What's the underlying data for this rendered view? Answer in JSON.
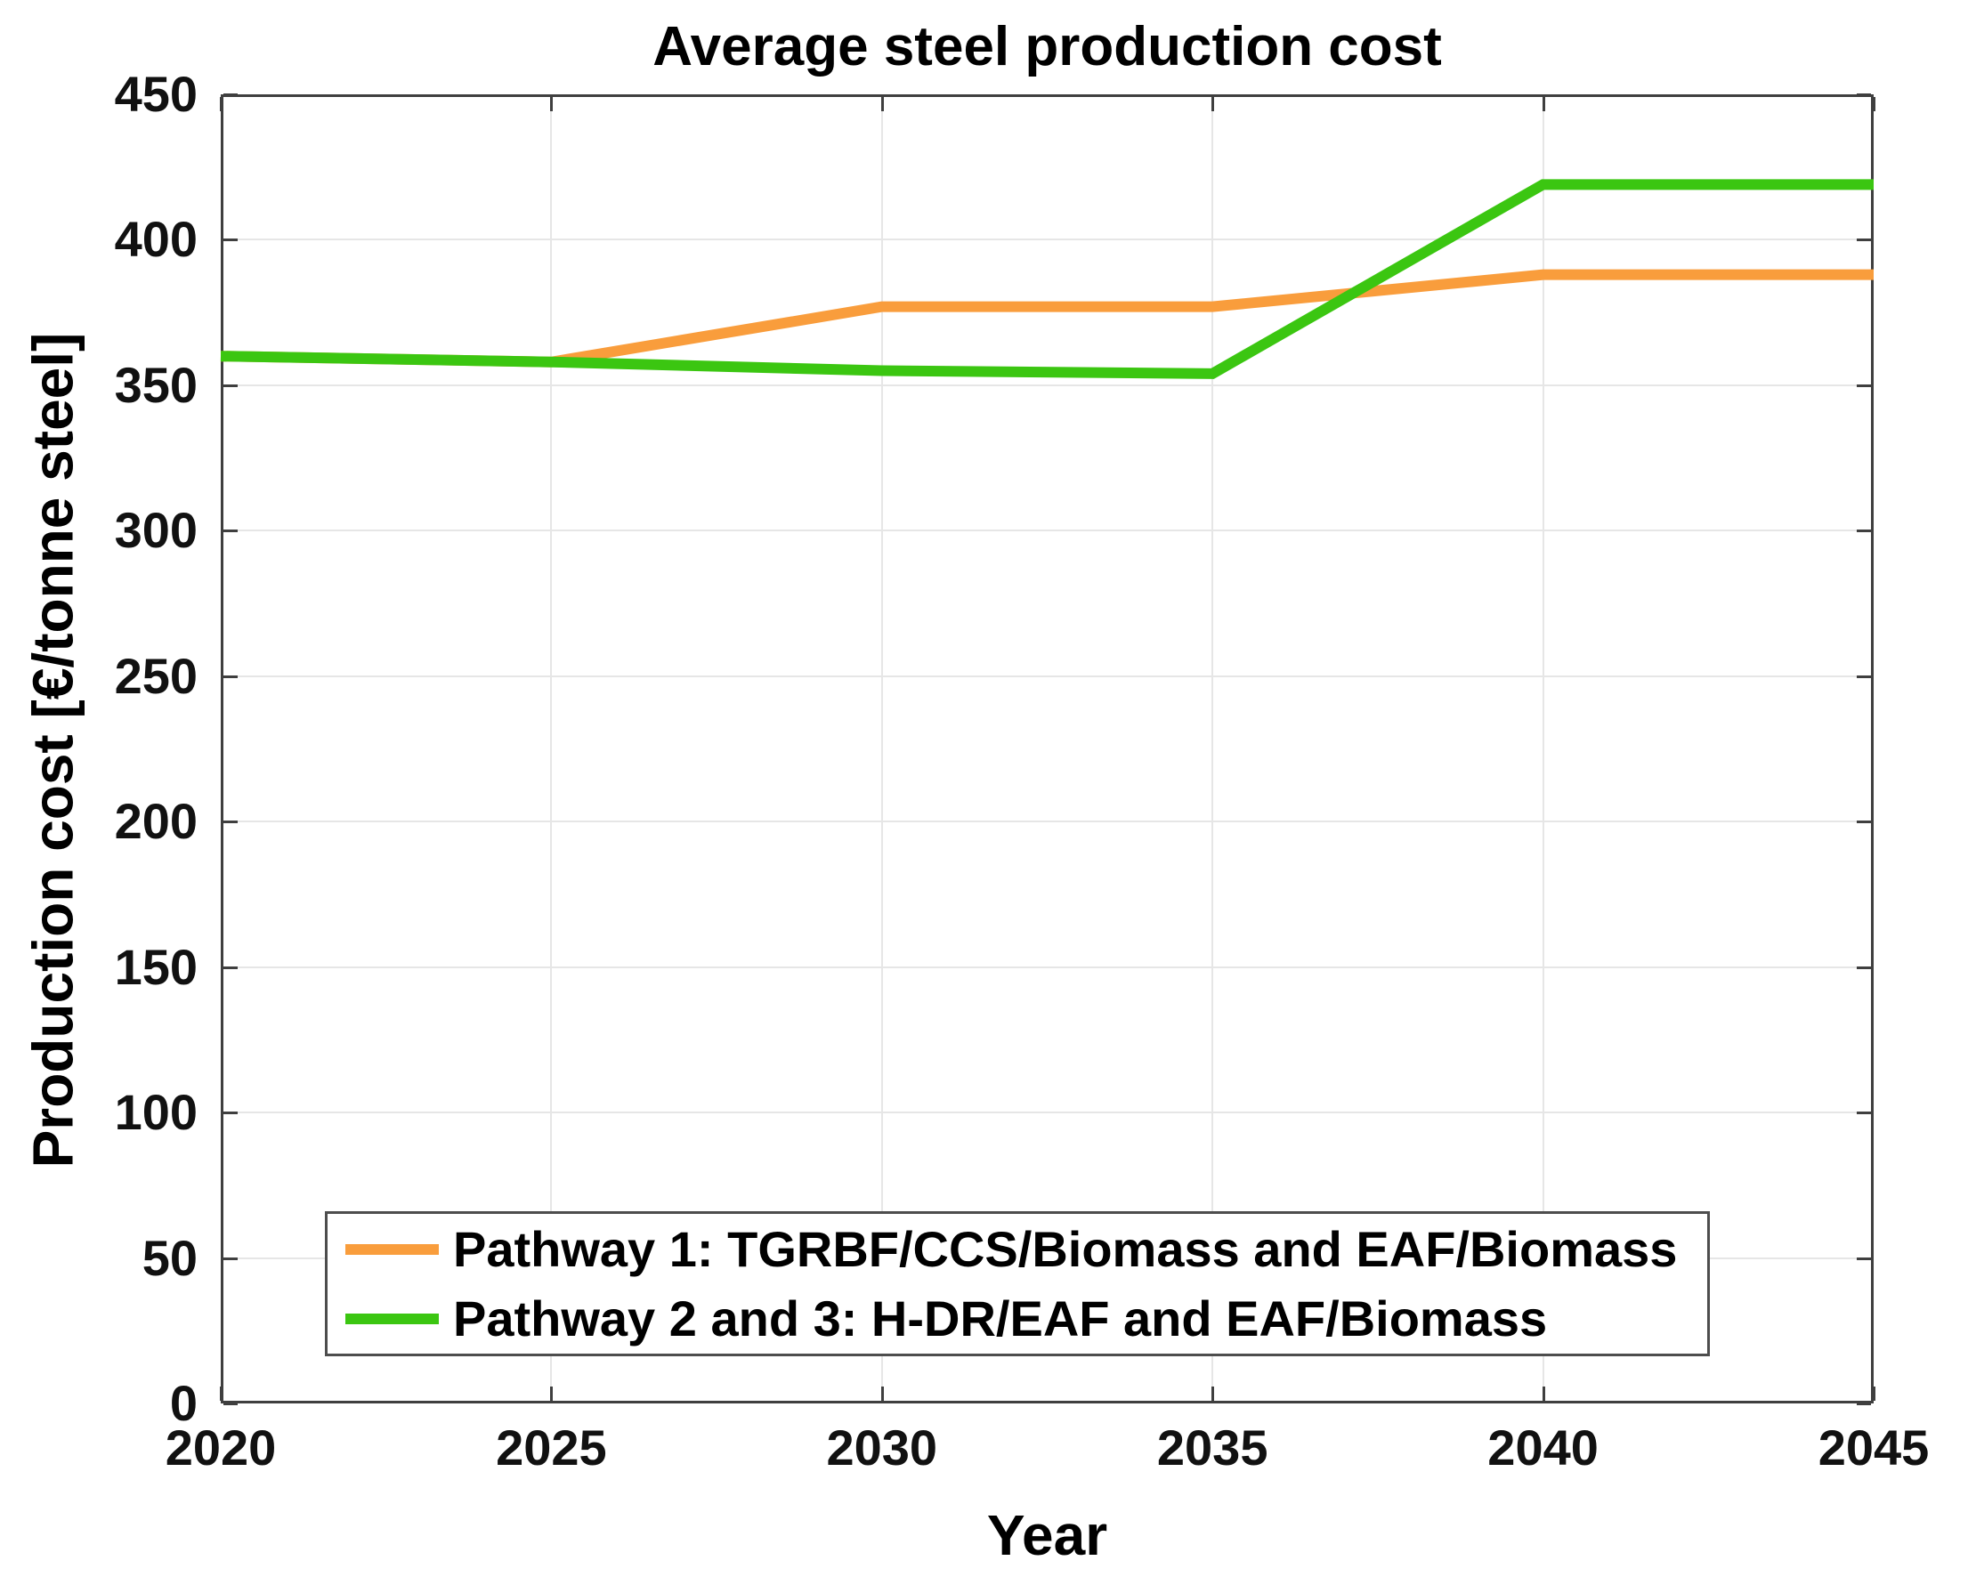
{
  "title": "Average steel production cost",
  "chart_data": {
    "type": "line",
    "title": "Average steel production cost",
    "xlabel": "Year",
    "ylabel": "Production cost [€/tonne steel]",
    "x": [
      2020,
      2025,
      2030,
      2035,
      2040,
      2045
    ],
    "series": [
      {
        "name": "Pathway 1: TGRBF/CCS/Biomass and EAF/Biomass",
        "color": "#F99D3C",
        "values": [
          360,
          358,
          377,
          377,
          388,
          388
        ]
      },
      {
        "name": "Pathway 2 and 3: H-DR/EAF and EAF/Biomass",
        "color": "#3BC611",
        "values": [
          360,
          358,
          355,
          354,
          419,
          419
        ]
      }
    ],
    "xlim": [
      2020,
      2045
    ],
    "ylim": [
      0,
      450
    ],
    "x_ticks": [
      "2020",
      "2025",
      "2030",
      "2035",
      "2040",
      "2045"
    ],
    "y_ticks": [
      "0",
      "50",
      "100",
      "150",
      "200",
      "250",
      "300",
      "350",
      "400",
      "450"
    ],
    "grid": true,
    "legend_position": "bottom-left"
  },
  "style": {
    "grid_color": "#e6e6e6",
    "axis_color": "#3f3f3f",
    "text_color": "#000000",
    "background": "#ffffff"
  }
}
